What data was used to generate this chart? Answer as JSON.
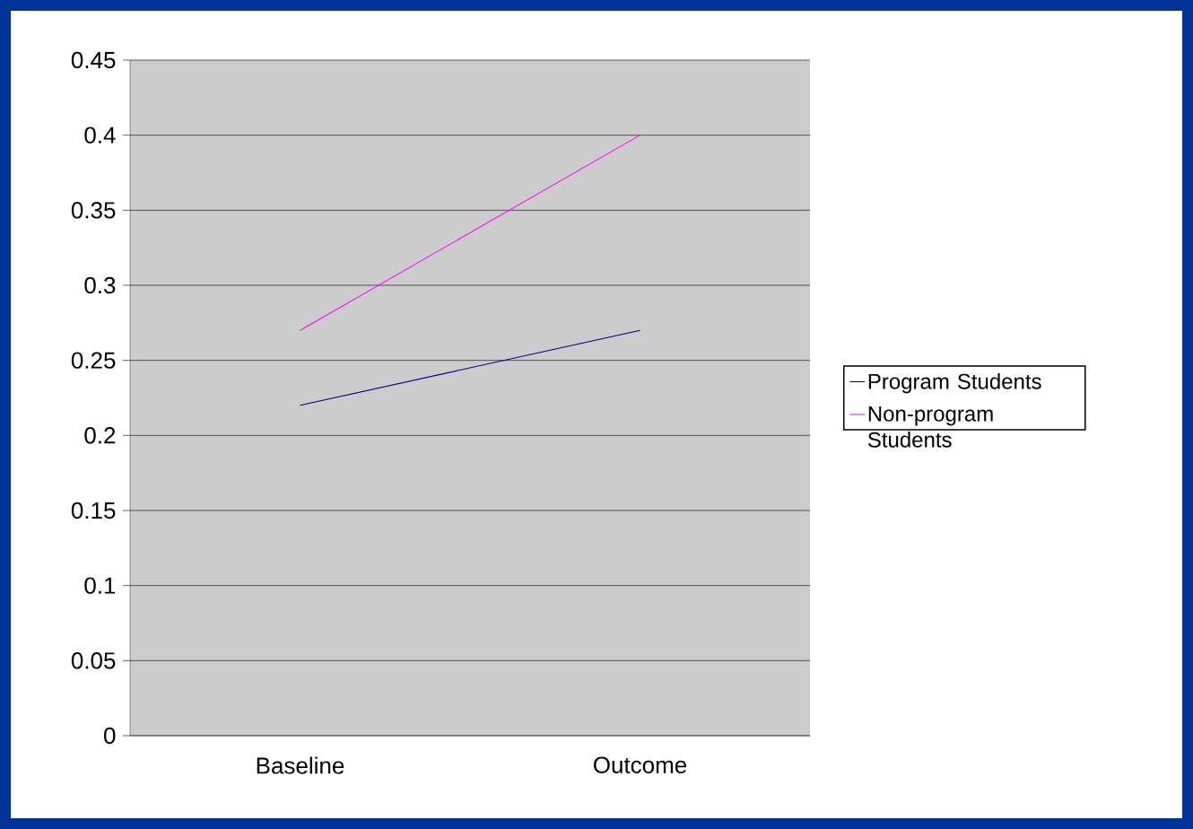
{
  "chart_data": {
    "type": "line",
    "categories": [
      "Baseline",
      "Outcome"
    ],
    "series": [
      {
        "name": "Program Students",
        "color": "#000080",
        "values": [
          0.22,
          0.27
        ]
      },
      {
        "name": "Non-program Students",
        "color": "#ff00ff",
        "values": [
          0.27,
          0.4
        ]
      }
    ],
    "ylim": [
      0,
      0.45
    ],
    "yticks": [
      0,
      0.05,
      0.1,
      0.15,
      0.2,
      0.25,
      0.3,
      0.35,
      0.4,
      0.45
    ],
    "grid": "y",
    "legend": "right"
  }
}
